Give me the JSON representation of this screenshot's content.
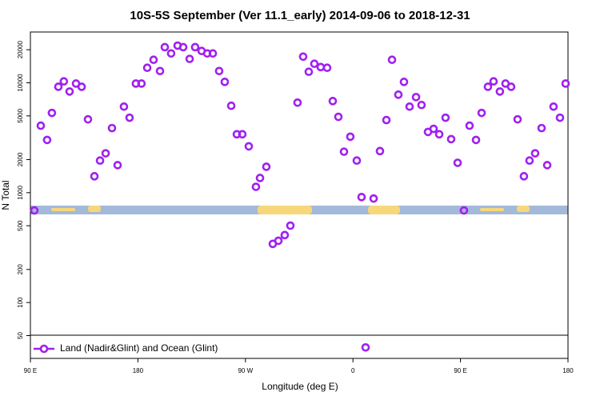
{
  "chart_data": {
    "type": "scatter",
    "title": "10S-5S September (Ver 11.1_early)   2014-09-06 to 2018-12-31",
    "xlabel": "Longitude (deg E)",
    "ylabel": "N Total",
    "xlim": [
      90,
      540
    ],
    "xticks": [
      {
        "value": 90,
        "label": "90 E"
      },
      180,
      {
        "value": 270,
        "label": "90 W"
      },
      {
        "value": 360,
        "label": "0"
      },
      {
        "value": 450,
        "label": "90 E"
      },
      {
        "value": 540,
        "label": "180"
      }
    ],
    "ylim": [
      31,
      29000
    ],
    "ylog": true,
    "yticks": [
      50,
      100,
      200,
      500,
      1000,
      2000,
      5000,
      10000,
      20000
    ],
    "legend": "bottom left",
    "series": [
      {
        "name": "Land (Nadir&Glint) and Ocean (Glint)",
        "color": "#a020f0",
        "x": [
          93.3,
          98.7,
          104,
          108,
          113.4,
          118,
          122.8,
          128.2,
          132.9,
          138.2,
          143.6,
          148.3,
          153,
          158.3,
          163,
          168.3,
          173,
          178.3,
          183,
          187.8,
          193.1,
          198.5,
          202.5,
          207.8,
          213.2,
          217.9,
          223.3,
          227.9,
          233.3,
          238,
          242.7,
          248,
          252.7,
          258.1,
          262.8,
          267.4,
          272.8,
          278.8,
          282.2,
          287.5,
          292.9,
          297.6,
          302.9,
          307.6,
          313.6,
          318.3,
          323,
          327.7,
          333,
          338.4,
          343.1,
          347.8,
          352.5,
          357.8,
          363.2,
          367.2,
          377.3,
          370.6,
          382.6,
          388,
          392.7,
          398,
          402.7,
          407.4,
          412.8,
          417.4,
          422.8,
          427.5,
          432.2,
          437.5,
          442.2,
          447.6,
          452.9,
          457.6,
          463,
          467.7,
          473,
          477.7,
          483,
          487.7,
          492.4,
          497.8,
          503.1,
          507.8,
          512.5,
          517.9,
          522.6,
          527.9,
          533.3,
          538
        ],
        "values": [
          689,
          4070,
          3020,
          5320,
          9200,
          10300,
          8330,
          9840,
          9200,
          4650,
          1410,
          1960,
          2280,
          3870,
          1780,
          6070,
          4810,
          9840,
          9840,
          13700,
          16200,
          12800,
          21100,
          18500,
          21800,
          21100,
          16500,
          21100,
          19500,
          18500,
          18500,
          12800,
          10200,
          6180,
          3400,
          3400,
          2640,
          1130,
          1360,
          1720,
          342,
          365,
          411,
          501,
          6600,
          17300,
          12600,
          14900,
          13900,
          13700,
          6820,
          4900,
          2360,
          3230,
          1960,
          912,
          884,
          39,
          2390,
          4580,
          16200,
          7800,
          10200,
          6070,
          7410,
          6280,
          3570,
          3810,
          3400,
          4810,
          3070,
          1870,
          689,
          4070,
          3020,
          5320,
          9200,
          10300,
          8330,
          9840,
          9200,
          4650,
          1410,
          1960,
          2280,
          3870,
          1780,
          6070,
          4810,
          9840
        ]
      }
    ]
  }
}
